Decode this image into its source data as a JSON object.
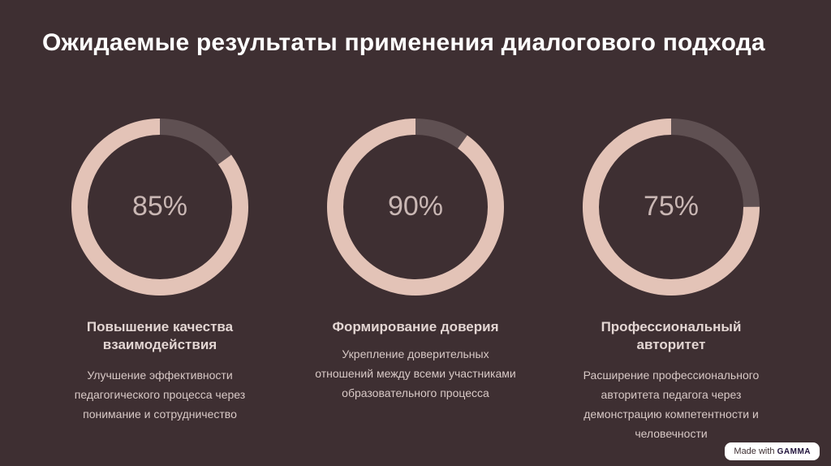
{
  "title": "Ожидаемые результаты применения диалогового подхода",
  "colors": {
    "background": "#3e2f32",
    "ring_filled": "#e3c3b7",
    "ring_track": "#5f5052"
  },
  "cards": [
    {
      "percent_label": "85%",
      "value": 85,
      "heading": "Повышение качества взаимодействия",
      "text": "Улучшение эффективности педагогического процесса через понимание и сотрудничество"
    },
    {
      "percent_label": "90%",
      "value": 90,
      "heading": "Формирование доверия",
      "text": "Укрепление доверительных отношений между всеми участниками образовательного процесса"
    },
    {
      "percent_label": "75%",
      "value": 75,
      "heading": "Профессиональный авторитет",
      "text": "Расширение профессионального авторитета педагога через демонстрацию компетентности и человечности"
    }
  ],
  "badge": {
    "prefix": "Made with",
    "brand": "GAMMA"
  }
}
